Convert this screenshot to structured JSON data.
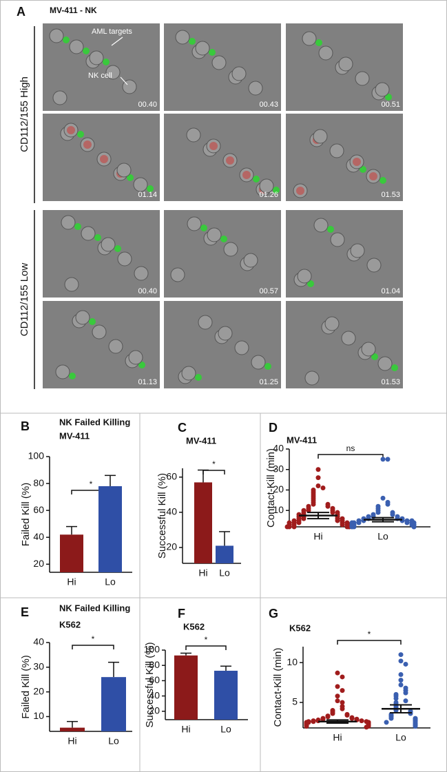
{
  "panel_a": {
    "letter": "A",
    "title": "MV-411 - NK",
    "annotations": [
      "AML targets",
      "NK cell"
    ],
    "groups": [
      {
        "label": "CD112/155 High",
        "timestamps": [
          "00.40",
          "00.43",
          "00.51",
          "01.14",
          "01.26",
          "01.53"
        ]
      },
      {
        "label": "CD112/155 Low",
        "timestamps": [
          "00.40",
          "00.57",
          "01.04",
          "01.13",
          "01.25",
          "01.53"
        ]
      }
    ]
  },
  "chart_data": [
    {
      "type": "bar",
      "panel": "B",
      "title": "NK Failed Killing",
      "subtitle": "MV-411",
      "ylabel": "Failed Kill (%)",
      "categories": [
        "Hi",
        "Lo"
      ],
      "values": [
        42,
        78
      ],
      "errors": [
        6,
        8
      ],
      "colors": [
        "#8c1a1a",
        "#2f4fa6"
      ],
      "ylim": [
        14,
        100
      ],
      "yticks": [
        20,
        40,
        60,
        80,
        100
      ],
      "annotation": "*"
    },
    {
      "type": "bar",
      "panel": "C",
      "title": "MV-411",
      "ylabel": "Successful Kill (%)",
      "categories": [
        "Hi",
        "Lo"
      ],
      "values": [
        57,
        21
      ],
      "errors": [
        7,
        8
      ],
      "colors": [
        "#8c1a1a",
        "#2f4fa6"
      ],
      "ylim": [
        11,
        65
      ],
      "yticks": [
        20,
        40,
        60
      ],
      "annotation": "*"
    },
    {
      "type": "strip",
      "panel": "D",
      "title": "MV-411",
      "ylabel": "Contact-Kill (min)",
      "categories": [
        "Hi",
        "Lo"
      ],
      "series": [
        {
          "color": "#a01c1c",
          "mean": 7.5,
          "error": 1.5,
          "values": [
            30,
            26,
            22,
            21,
            20,
            19,
            18,
            17,
            16,
            15,
            14,
            13,
            13,
            12,
            12,
            11,
            11,
            10,
            10,
            10,
            9,
            9,
            9,
            8,
            8,
            8,
            7,
            7,
            7,
            6,
            6,
            6,
            6,
            5,
            5,
            5,
            5,
            4,
            4,
            4,
            4,
            4,
            3,
            3,
            3,
            3,
            3,
            2,
            2,
            2,
            2,
            2,
            2
          ]
        },
        {
          "color": "#3a5fb0",
          "mean": 5.5,
          "error": 1,
          "values": [
            35,
            35,
            16,
            14,
            13,
            12,
            11,
            10,
            9,
            9,
            8,
            8,
            7,
            7,
            7,
            6,
            6,
            6,
            6,
            5,
            5,
            5,
            5,
            5,
            4,
            4,
            4,
            4,
            4,
            4,
            3,
            3,
            3,
            3,
            3,
            3,
            2,
            2,
            2,
            2,
            2
          ]
        }
      ],
      "ylim": [
        2,
        40
      ],
      "yticks": [
        10,
        20,
        30,
        40
      ],
      "annotation": "ns"
    },
    {
      "type": "bar",
      "panel": "E",
      "title": "NK Failed Killing",
      "subtitle": "K562",
      "ylabel": "Failed Kill (%)",
      "categories": [
        "Hi",
        "Lo"
      ],
      "values": [
        5.5,
        26
      ],
      "errors": [
        2.5,
        6
      ],
      "colors": [
        "#8c1a1a",
        "#2f4fa6"
      ],
      "ylim": [
        4,
        40
      ],
      "yticks": [
        10,
        20,
        30,
        40
      ],
      "annotation": "*"
    },
    {
      "type": "bar",
      "panel": "F",
      "title": "K562",
      "ylabel": "Successful Kill (%)",
      "categories": [
        "Hi",
        "Lo"
      ],
      "values": [
        93,
        73
      ],
      "errors": [
        3,
        6
      ],
      "colors": [
        "#8c1a1a",
        "#2f4fa6"
      ],
      "ylim": [
        9,
        100
      ],
      "yticks": [
        20,
        40,
        60,
        80,
        100
      ],
      "annotation": "*"
    },
    {
      "type": "strip",
      "panel": "G",
      "title": "K562",
      "ylabel": "Contact-Kill (min)",
      "categories": [
        "Hi",
        "Lo"
      ],
      "series": [
        {
          "color": "#a01c1c",
          "mean": 2.6,
          "error": 0.2,
          "values": [
            8.7,
            8.2,
            7,
            6.5,
            5.8,
            5.2,
            5,
            4.5,
            4.2,
            4,
            3.8,
            3.6,
            3.5,
            3.4,
            3.3,
            3.2,
            3.1,
            3,
            3,
            2.9,
            2.9,
            2.8,
            2.8,
            2.7,
            2.7,
            2.7,
            2.6,
            2.6,
            2.6,
            2.5,
            2.5,
            2.5,
            2.5,
            2.4,
            2.4,
            2.4,
            2.3,
            2.3,
            2.2,
            2.2,
            2.1,
            2.1,
            2,
            2,
            1.9
          ]
        },
        {
          "color": "#3a5fb0",
          "mean": 4.2,
          "error": 0.5,
          "values": [
            11,
            10.2,
            9.8,
            8.5,
            7.8,
            7.2,
            6.8,
            6.5,
            6.2,
            6,
            5.8,
            5.5,
            5.2,
            5,
            4.8,
            4.6,
            4.4,
            4.2,
            4,
            3.9,
            3.8,
            3.6,
            3.5,
            3.4,
            3.3,
            3.2,
            3,
            3,
            2.9,
            2.8,
            2.7,
            2.6,
            2.5,
            2.4,
            2.3,
            2.2,
            2.1,
            2
          ]
        }
      ],
      "ylim": [
        1.8,
        12
      ],
      "yticks": [
        5,
        10
      ],
      "annotation": "*"
    }
  ]
}
